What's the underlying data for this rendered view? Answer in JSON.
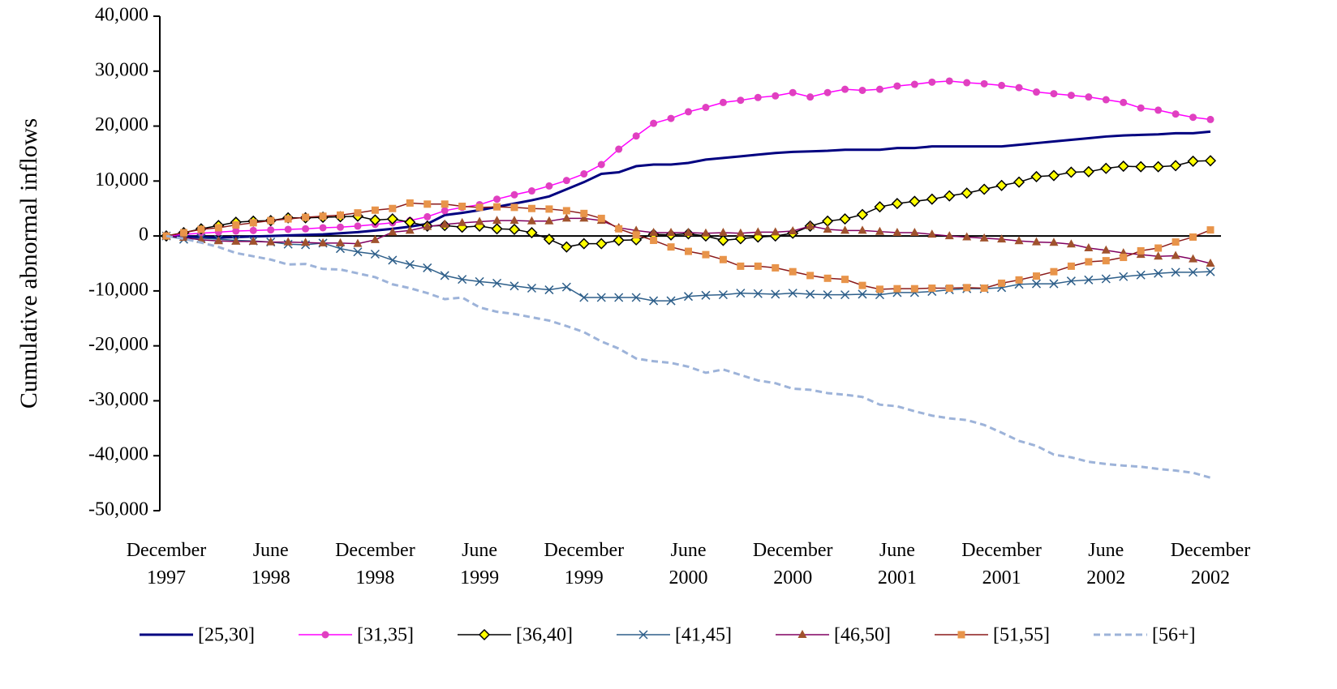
{
  "chart_data": {
    "type": "line",
    "y_label": "Cumulative  abnormal inflows",
    "ylim": [
      -50000,
      40000
    ],
    "yticks": [
      {
        "value": -50000,
        "label": "-50,000"
      },
      {
        "value": -40000,
        "label": "-40,000"
      },
      {
        "value": -30000,
        "label": "-30,000"
      },
      {
        "value": -20000,
        "label": "-20,000"
      },
      {
        "value": -10000,
        "label": "-10,000"
      },
      0,
      {
        "value": 10000,
        "label": "10,000"
      },
      {
        "value": 20000,
        "label": "20,000"
      },
      {
        "value": 30000,
        "label": "30,000"
      },
      {
        "value": 40000,
        "label": "40,000"
      }
    ],
    "legend": "bottom",
    "categories": [
      "December\n1997",
      null,
      null,
      null,
      null,
      null,
      "June\n1998",
      null,
      null,
      null,
      null,
      null,
      "December\n1998",
      null,
      null,
      null,
      null,
      null,
      "June\n1999",
      null,
      null,
      null,
      null,
      null,
      "December\n1999",
      null,
      null,
      null,
      null,
      null,
      "June\n2000",
      null,
      null,
      null,
      null,
      null,
      "December\n2000",
      null,
      null,
      null,
      null,
      null,
      "June\n2001",
      null,
      null,
      null,
      null,
      null,
      "December\n2001",
      null,
      null,
      null,
      null,
      null,
      "June\n2002",
      null,
      null,
      null,
      null,
      null,
      "December\n2002"
    ],
    "series": [
      {
        "name": "[25,30]",
        "color": "#000080",
        "width": 3,
        "marker": "none",
        "values": [
          0,
          -100,
          -200,
          -300,
          -200,
          -100,
          0,
          100,
          200,
          300,
          500,
          700,
          1000,
          1300,
          1700,
          2200,
          3800,
          4200,
          4700,
          5300,
          5900,
          6500,
          7200,
          8500,
          9800,
          11300,
          11600,
          12700,
          13000,
          13000,
          13300,
          13900,
          14200,
          14500,
          14800,
          15100,
          15300,
          15400,
          15500,
          15700,
          15700,
          15700,
          16000,
          16000,
          16300,
          16300,
          16300,
          16300,
          16300,
          16600,
          16900,
          17200,
          17500,
          17800,
          18100,
          18300,
          18400,
          18500,
          18700,
          18700,
          19000
        ]
      },
      {
        "name": "[31,35]",
        "color": "#ff00ff",
        "width": 1.5,
        "marker": "circle",
        "marker_color": "#e040c0",
        "values": [
          0,
          300,
          500,
          700,
          900,
          1000,
          1100,
          1200,
          1300,
          1500,
          1600,
          1800,
          2100,
          2400,
          2800,
          3500,
          4600,
          5200,
          5700,
          6700,
          7500,
          8200,
          9100,
          10100,
          11300,
          13000,
          15800,
          18200,
          20500,
          21400,
          22600,
          23400,
          24300,
          24700,
          25200,
          25500,
          26100,
          25300,
          26100,
          26700,
          26500,
          26700,
          27300,
          27600,
          28000,
          28200,
          27900,
          27700,
          27400,
          27000,
          26200,
          25900,
          25600,
          25300,
          24800,
          24300,
          23300,
          22900,
          22200,
          21600,
          21200
        ]
      },
      {
        "name": "[36,40]",
        "color": "#000000",
        "width": 1.5,
        "marker": "diamond",
        "marker_color": "#ffff00",
        "values": [
          0,
          600,
          1300,
          1900,
          2500,
          2700,
          2800,
          3300,
          3300,
          3400,
          3500,
          3600,
          2900,
          3100,
          2500,
          1800,
          1900,
          1600,
          1800,
          1300,
          1200,
          600,
          -600,
          -2000,
          -1400,
          -1400,
          -800,
          -700,
          300,
          200,
          400,
          0,
          -800,
          -500,
          -200,
          0,
          500,
          1800,
          2700,
          3100,
          3900,
          5300,
          5900,
          6300,
          6700,
          7300,
          7800,
          8500,
          9200,
          9800,
          10800,
          11000,
          11600,
          11700,
          12300,
          12700,
          12600,
          12600,
          12800,
          13600,
          13700
        ]
      },
      {
        "name": "[41,45]",
        "color": "#2e5f8a",
        "width": 1.5,
        "marker": "x",
        "marker_color": "#2e5f8a",
        "values": [
          0,
          -600,
          -400,
          -600,
          -800,
          -900,
          -1100,
          -1500,
          -1600,
          -1300,
          -2300,
          -2900,
          -3300,
          -4400,
          -5200,
          -5800,
          -7200,
          -7900,
          -8300,
          -8600,
          -9100,
          -9500,
          -9800,
          -9300,
          -11200,
          -11200,
          -11200,
          -11200,
          -11800,
          -11800,
          -11000,
          -10800,
          -10700,
          -10400,
          -10500,
          -10600,
          -10400,
          -10600,
          -10700,
          -10700,
          -10600,
          -10700,
          -10300,
          -10300,
          -10100,
          -9800,
          -9600,
          -9600,
          -9400,
          -8800,
          -8700,
          -8700,
          -8200,
          -8000,
          -7800,
          -7400,
          -7100,
          -6800,
          -6600,
          -6600,
          -6500
        ]
      },
      {
        "name": "[46,50]",
        "color": "#800060",
        "width": 1.5,
        "marker": "triangle",
        "marker_color": "#a0522d",
        "values": [
          0,
          -300,
          -700,
          -900,
          -1000,
          -1000,
          -1100,
          -1100,
          -1200,
          -1300,
          -1300,
          -1400,
          -700,
          700,
          1000,
          1700,
          2100,
          2400,
          2600,
          2800,
          2800,
          2700,
          2700,
          3200,
          3200,
          2800,
          1500,
          1000,
          600,
          600,
          600,
          500,
          600,
          500,
          700,
          700,
          900,
          1800,
          1200,
          1000,
          1000,
          800,
          600,
          600,
          300,
          0,
          -200,
          -400,
          -600,
          -900,
          -1100,
          -1200,
          -1500,
          -2200,
          -2600,
          -3100,
          -3400,
          -3700,
          -3600,
          -4200,
          -5000
        ]
      },
      {
        "name": "[51,55]",
        "color": "#8b1a1a",
        "width": 1.5,
        "marker": "square",
        "marker_color": "#e8944a",
        "values": [
          0,
          600,
          1200,
          1500,
          2000,
          2400,
          2800,
          3100,
          3400,
          3600,
          3800,
          4200,
          4700,
          5000,
          6000,
          5800,
          5800,
          5400,
          5200,
          5300,
          5200,
          5000,
          4900,
          4600,
          4100,
          3200,
          1300,
          200,
          -800,
          -2000,
          -2800,
          -3400,
          -4300,
          -5500,
          -5500,
          -5800,
          -6500,
          -7200,
          -7700,
          -7900,
          -9000,
          -9700,
          -9600,
          -9600,
          -9500,
          -9500,
          -9400,
          -9500,
          -8600,
          -8000,
          -7300,
          -6500,
          -5500,
          -4700,
          -4500,
          -3900,
          -2700,
          -2200,
          -1100,
          -200,
          1100
        ]
      },
      {
        "name": "[56+]",
        "color": "#9db3d9",
        "width": 3,
        "marker": "none",
        "dash": "8 5",
        "values": [
          0,
          -500,
          -1200,
          -2000,
          -3100,
          -3700,
          -4300,
          -5200,
          -5100,
          -6000,
          -6100,
          -6800,
          -7500,
          -8800,
          -9500,
          -10400,
          -11500,
          -11200,
          -13000,
          -13800,
          -14200,
          -14800,
          -15400,
          -16400,
          -17500,
          -19200,
          -20500,
          -22300,
          -22800,
          -23100,
          -23800,
          -24900,
          -24300,
          -25300,
          -26300,
          -26800,
          -27800,
          -28000,
          -28600,
          -28900,
          -29300,
          -30700,
          -31000,
          -31900,
          -32700,
          -33200,
          -33500,
          -34400,
          -35800,
          -37300,
          -38200,
          -39800,
          -40300,
          -41100,
          -41500,
          -41800,
          -42000,
          -42400,
          -42700,
          -43100,
          -44000
        ]
      }
    ]
  }
}
